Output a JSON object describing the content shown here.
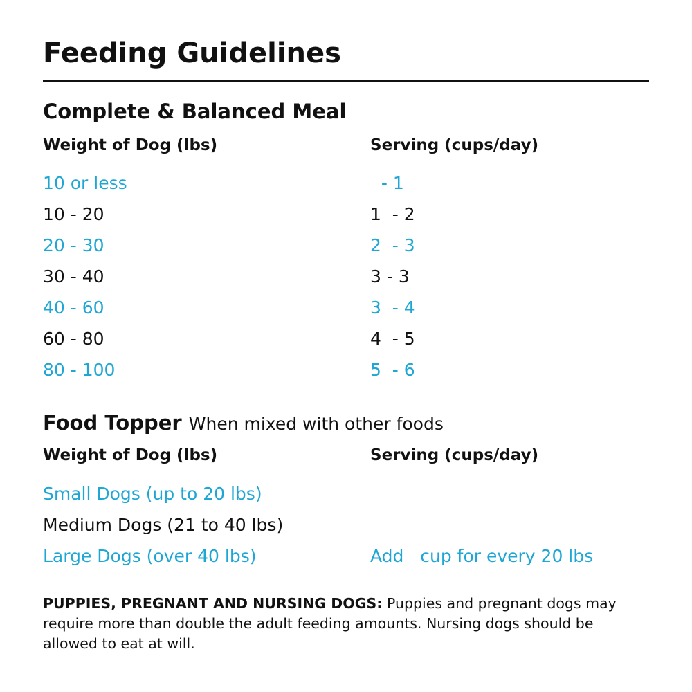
{
  "title": "Feeding Guidelines",
  "meal": {
    "heading": "Complete & Balanced Meal",
    "col_weight": "Weight of Dog (lbs)",
    "col_serving": "Serving (cups/day)",
    "rows": [
      {
        "weight": "10 or less",
        "serving": "  - 1",
        "highlight": true
      },
      {
        "weight": "10 - 20",
        "serving": "1  - 2",
        "highlight": false
      },
      {
        "weight": "20 - 30",
        "serving": "2  - 3",
        "highlight": true
      },
      {
        "weight": "30 - 40",
        "serving": "3 - 3",
        "highlight": false
      },
      {
        "weight": "40 - 60",
        "serving": "3  - 4",
        "highlight": true
      },
      {
        "weight": "60 - 80",
        "serving": "4  - 5",
        "highlight": false
      },
      {
        "weight": "80 - 100",
        "serving": "5  - 6",
        "highlight": true
      }
    ]
  },
  "topper": {
    "heading": "Food Topper",
    "subheading": "When mixed with other foods",
    "col_weight": "Weight of Dog (lbs)",
    "col_serving": "Serving (cups/day)",
    "rows": [
      {
        "weight": "Small Dogs (up to 20 lbs)",
        "serving": "",
        "highlight": true
      },
      {
        "weight": "Medium Dogs (21 to 40 lbs)",
        "serving": "",
        "highlight": false
      },
      {
        "weight": "Large Dogs (over 40 lbs)",
        "serving": "Add   cup for every 20 lbs",
        "highlight": true
      }
    ]
  },
  "footnote": {
    "label": "PUPPIES, PREGNANT AND NURSING DOGS:",
    "text": " Puppies and pregnant dogs may require more than double the adult feeding amounts. Nursing dogs should be allowed to eat at will."
  },
  "colors": {
    "accent": "#1ea7d4",
    "text": "#111111"
  }
}
